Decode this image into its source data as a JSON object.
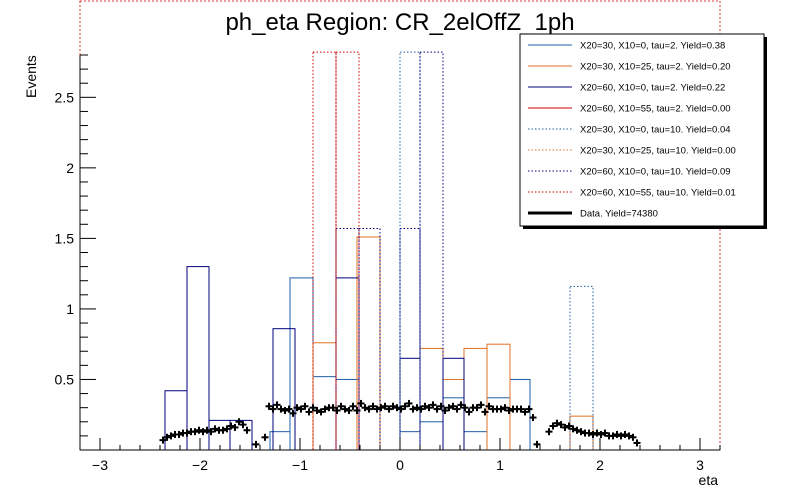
{
  "chart_data": {
    "type": "histogram",
    "title": "ph_eta Region: CR_2elOffZ_1ph",
    "xlabel": "eta",
    "ylabel": "Events",
    "xlim": [
      -3.2,
      3.2
    ],
    "ylim": [
      0,
      2.8
    ],
    "x_ticks": [
      -3,
      -2,
      -1,
      0,
      1,
      2,
      3
    ],
    "x_tick_labels": [
      "−3",
      "−2",
      "−1",
      "0",
      "1",
      "2",
      "3"
    ],
    "y_ticks": [
      0.5,
      1,
      1.5,
      2,
      2.5
    ],
    "y_tick_labels": [
      "0.5",
      "1",
      "1.5",
      "2",
      "2.5"
    ],
    "grid": false,
    "legend_position": "top-right",
    "series": [
      {
        "name": "X20=30, X10=0, tau=2. Yield=0.38",
        "color": "#1f5fa8",
        "style": "solid",
        "bins": [
          [
            -1.3,
            -1.1,
            0.13
          ],
          [
            -1.1,
            -0.87,
            1.22
          ],
          [
            -0.87,
            -0.64,
            0.52
          ],
          [
            -0.64,
            -0.41,
            0.5
          ],
          [
            -0.41,
            0.0,
            0.0
          ],
          [
            0.0,
            0.2,
            0.13
          ],
          [
            0.2,
            0.43,
            0.2
          ],
          [
            0.43,
            0.64,
            0.37
          ],
          [
            0.64,
            0.87,
            0.13
          ],
          [
            0.87,
            1.1,
            0.37
          ],
          [
            1.1,
            1.3,
            0.5
          ]
        ]
      },
      {
        "name": "X20=30, X10=25, tau=2. Yield=0.20",
        "color": "#e07020",
        "style": "solid",
        "bins": [
          [
            -0.87,
            -0.64,
            0.76
          ],
          [
            -0.64,
            -0.43,
            0.0
          ],
          [
            -0.43,
            -0.2,
            1.51
          ],
          [
            0.2,
            0.43,
            0.72
          ],
          [
            0.43,
            0.64,
            0.5
          ],
          [
            0.64,
            0.87,
            0.72
          ],
          [
            0.87,
            1.1,
            0.75
          ],
          [
            1.7,
            1.93,
            0.24
          ]
        ]
      },
      {
        "name": "X20=60, X10=0, tau=2. Yield=0.22",
        "color": "#00007f",
        "style": "solid",
        "bins": [
          [
            -2.35,
            -2.13,
            0.42
          ],
          [
            -2.13,
            -1.91,
            1.3
          ],
          [
            -1.91,
            -1.7,
            0.21
          ],
          [
            -1.7,
            -1.48,
            0.21
          ],
          [
            -1.27,
            -1.05,
            0.86
          ],
          [
            -0.64,
            -0.41,
            1.22
          ],
          [
            0.0,
            0.2,
            0.65
          ],
          [
            0.43,
            0.64,
            0.65
          ]
        ]
      },
      {
        "name": "X20=60, X10=55, tau=2. Yield=0.00",
        "color": "#cc0000",
        "style": "solid",
        "bins": []
      },
      {
        "name": "X20=30, X10=0, tau=10. Yield=0.04",
        "color": "#1f5fa8",
        "style": "dotted",
        "bins": [
          [
            0.0,
            0.2,
            2.82
          ],
          [
            1.7,
            1.93,
            1.16
          ]
        ]
      },
      {
        "name": "X20=30, X10=25, tau=10. Yield=0.00",
        "color": "#e07020",
        "style": "dotted",
        "bins": []
      },
      {
        "name": "X20=60, X10=0, tau=10. Yield=0.09",
        "color": "#00007f",
        "style": "dotted",
        "bins": [
          [
            -0.64,
            -0.41,
            1.57
          ],
          [
            -0.41,
            -0.2,
            1.57
          ],
          [
            0.0,
            0.2,
            1.57
          ],
          [
            0.2,
            0.43,
            2.82
          ]
        ]
      },
      {
        "name": "X20=60, X10=55, tau=10. Yield=0.01",
        "color": "#cc0000",
        "style": "dotted",
        "bins": [
          [
            -0.87,
            -0.64,
            2.82
          ],
          [
            -0.64,
            -0.41,
            2.82
          ]
        ]
      }
    ],
    "data_series": {
      "name": "Data. Yield=74380",
      "color": "#000000",
      "points": [
        [
          -2.37,
          0.07
        ],
        [
          -2.33,
          0.09
        ],
        [
          -2.29,
          0.1
        ],
        [
          -2.25,
          0.11
        ],
        [
          -2.21,
          0.11
        ],
        [
          -2.17,
          0.12
        ],
        [
          -2.13,
          0.12
        ],
        [
          -2.09,
          0.13
        ],
        [
          -2.05,
          0.13
        ],
        [
          -2.01,
          0.14
        ],
        [
          -1.97,
          0.13
        ],
        [
          -1.93,
          0.14
        ],
        [
          -1.89,
          0.13
        ],
        [
          -1.85,
          0.15
        ],
        [
          -1.81,
          0.14
        ],
        [
          -1.77,
          0.14
        ],
        [
          -1.73,
          0.15
        ],
        [
          -1.69,
          0.17
        ],
        [
          -1.65,
          0.16
        ],
        [
          -1.61,
          0.2
        ],
        [
          -1.57,
          0.18
        ],
        [
          -1.53,
          0.14
        ],
        [
          -1.44,
          0.04
        ],
        [
          -1.35,
          0.09
        ],
        [
          -1.31,
          0.31
        ],
        [
          -1.27,
          0.29
        ],
        [
          -1.23,
          0.32
        ],
        [
          -1.19,
          0.29
        ],
        [
          -1.15,
          0.28
        ],
        [
          -1.11,
          0.29
        ],
        [
          -1.07,
          0.26
        ],
        [
          -1.03,
          0.3
        ],
        [
          -0.99,
          0.29
        ],
        [
          -0.95,
          0.31
        ],
        [
          -0.91,
          0.27
        ],
        [
          -0.87,
          0.3
        ],
        [
          -0.83,
          0.28
        ],
        [
          -0.79,
          0.27
        ],
        [
          -0.75,
          0.29
        ],
        [
          -0.71,
          0.3
        ],
        [
          -0.67,
          0.3
        ],
        [
          -0.63,
          0.28
        ],
        [
          -0.59,
          0.31
        ],
        [
          -0.55,
          0.29
        ],
        [
          -0.51,
          0.28
        ],
        [
          -0.47,
          0.31
        ],
        [
          -0.43,
          0.28
        ],
        [
          -0.39,
          0.33
        ],
        [
          -0.35,
          0.3
        ],
        [
          -0.31,
          0.29
        ],
        [
          -0.27,
          0.31
        ],
        [
          -0.23,
          0.29
        ],
        [
          -0.19,
          0.3
        ],
        [
          -0.15,
          0.31
        ],
        [
          -0.11,
          0.29
        ],
        [
          -0.07,
          0.31
        ],
        [
          -0.03,
          0.3
        ],
        [
          0.01,
          0.29
        ],
        [
          0.05,
          0.31
        ],
        [
          0.09,
          0.33
        ],
        [
          0.13,
          0.29
        ],
        [
          0.17,
          0.3
        ],
        [
          0.21,
          0.29
        ],
        [
          0.25,
          0.31
        ],
        [
          0.29,
          0.3
        ],
        [
          0.33,
          0.32
        ],
        [
          0.37,
          0.29
        ],
        [
          0.41,
          0.31
        ],
        [
          0.45,
          0.28
        ],
        [
          0.49,
          0.3
        ],
        [
          0.53,
          0.31
        ],
        [
          0.57,
          0.29
        ],
        [
          0.61,
          0.32
        ],
        [
          0.65,
          0.3
        ],
        [
          0.69,
          0.27
        ],
        [
          0.73,
          0.3
        ],
        [
          0.77,
          0.3
        ],
        [
          0.81,
          0.32
        ],
        [
          0.85,
          0.27
        ],
        [
          0.89,
          0.31
        ],
        [
          0.93,
          0.29
        ],
        [
          0.97,
          0.29
        ],
        [
          1.01,
          0.29
        ],
        [
          1.05,
          0.3
        ],
        [
          1.09,
          0.28
        ],
        [
          1.13,
          0.29
        ],
        [
          1.17,
          0.29
        ],
        [
          1.21,
          0.29
        ],
        [
          1.25,
          0.27
        ],
        [
          1.29,
          0.29
        ],
        [
          1.33,
          0.23
        ],
        [
          1.37,
          0.04
        ],
        [
          1.49,
          0.13
        ],
        [
          1.53,
          0.17
        ],
        [
          1.57,
          0.19
        ],
        [
          1.61,
          0.18
        ],
        [
          1.65,
          0.16
        ],
        [
          1.69,
          0.17
        ],
        [
          1.73,
          0.15
        ],
        [
          1.77,
          0.14
        ],
        [
          1.81,
          0.13
        ],
        [
          1.85,
          0.12
        ],
        [
          1.89,
          0.12
        ],
        [
          1.93,
          0.11
        ],
        [
          1.97,
          0.12
        ],
        [
          2.01,
          0.11
        ],
        [
          2.05,
          0.12
        ],
        [
          2.09,
          0.1
        ],
        [
          2.13,
          0.1
        ],
        [
          2.17,
          0.11
        ],
        [
          2.21,
          0.1
        ],
        [
          2.25,
          0.11
        ],
        [
          2.29,
          0.1
        ],
        [
          2.33,
          0.09
        ],
        [
          2.37,
          0.05
        ]
      ]
    }
  }
}
